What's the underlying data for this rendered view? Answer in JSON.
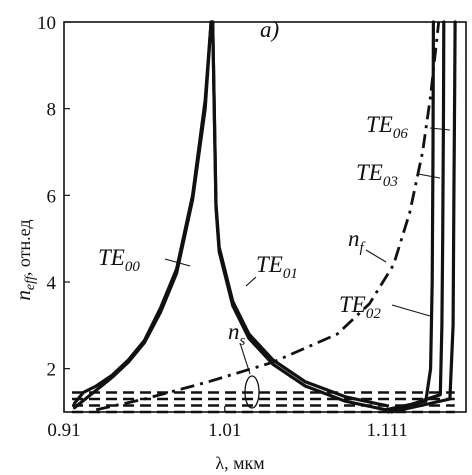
{
  "chart_data": {
    "type": "line",
    "panel_label": "a)",
    "xlabel": "λ, мкм",
    "ylabel_main": "n",
    "ylabel_sub": "eff",
    "ylabel_unit": ", отн.ед",
    "xlim": [
      0.91,
      1.16
    ],
    "ylim": [
      1,
      10
    ],
    "x_ticks": [
      "0.91",
      "1.01",
      "1.111"
    ],
    "x_tick_values": [
      0.91,
      1.01,
      1.111
    ],
    "y_ticks": [
      "2",
      "4",
      "6",
      "8",
      "10"
    ],
    "y_tick_values": [
      2,
      4,
      6,
      8,
      10
    ],
    "series": [
      {
        "name": "TE00",
        "style": "solid",
        "x": [
          0.9165,
          0.922,
          0.93,
          0.94,
          0.95,
          0.96,
          0.97,
          0.98,
          0.99,
          0.9978,
          1.0015,
          1.0025,
          1.0045,
          1.0065,
          1.015,
          1.025,
          1.04,
          1.06,
          1.085,
          1.11
        ],
        "y": [
          1.2,
          1.45,
          1.6,
          1.85,
          2.2,
          2.65,
          3.4,
          4.3,
          6.0,
          8.2,
          10.0,
          10.0,
          5.8,
          4.8,
          3.55,
          2.8,
          2.2,
          1.7,
          1.35,
          1.15
        ]
      },
      {
        "name": "TE01",
        "style": "solid",
        "x": [
          0.9165,
          0.925,
          0.93,
          0.94,
          0.95,
          0.96,
          0.97,
          0.98,
          0.99,
          0.9978,
          1.0015,
          1.0025,
          1.0045,
          1.0065,
          1.015,
          1.025,
          1.04,
          1.06,
          1.085,
          1.11
        ],
        "y": [
          1.1,
          1.35,
          1.5,
          1.8,
          2.15,
          2.6,
          3.3,
          4.2,
          5.9,
          8.0,
          10.0,
          10.0,
          5.7,
          4.7,
          3.45,
          2.7,
          2.1,
          1.6,
          1.25,
          1.05
        ]
      },
      {
        "name": "TE02",
        "style": "solid",
        "x": [
          1.11,
          1.135,
          1.138,
          1.139,
          1.1395,
          1.1397
        ],
        "y": [
          1.05,
          1.25,
          2.0,
          4.0,
          7.0,
          10.0
        ]
      },
      {
        "name": "TE03",
        "style": "solid",
        "x": [
          1.112,
          1.144,
          1.145,
          1.1455,
          1.146,
          1.1462
        ],
        "y": [
          1.0,
          1.4,
          3.0,
          5.0,
          8.0,
          10.0
        ]
      },
      {
        "name": "TE06",
        "style": "solid",
        "x": [
          1.114,
          1.15,
          1.152,
          1.1525,
          1.153,
          1.1532
        ],
        "y": [
          1.0,
          1.3,
          3.0,
          6.0,
          8.5,
          10.0
        ]
      },
      {
        "name": "nf",
        "style": "dash-dot",
        "x": [
          0.93,
          0.96,
          1.0,
          1.04,
          1.08,
          1.1,
          1.115,
          1.125,
          1.133,
          1.138,
          1.143
        ],
        "y": [
          1.05,
          1.3,
          1.7,
          2.15,
          2.8,
          3.5,
          4.4,
          5.6,
          7.0,
          8.3,
          10.0
        ]
      },
      {
        "name": "ns",
        "style": "dashed",
        "type": "hlines",
        "x": [
          0.915,
          1.153
        ],
        "levels": [
          1.0,
          1.15,
          1.3,
          1.45
        ]
      }
    ],
    "annotations": [
      {
        "main": "TE",
        "sub": "00"
      },
      {
        "main": "TE",
        "sub": "01"
      },
      {
        "main": "TE",
        "sub": "02"
      },
      {
        "main": "TE",
        "sub": "03"
      },
      {
        "main": "TE",
        "sub": "06"
      },
      {
        "main": "n",
        "sub": "f"
      },
      {
        "main": "n",
        "sub": "s"
      }
    ]
  }
}
